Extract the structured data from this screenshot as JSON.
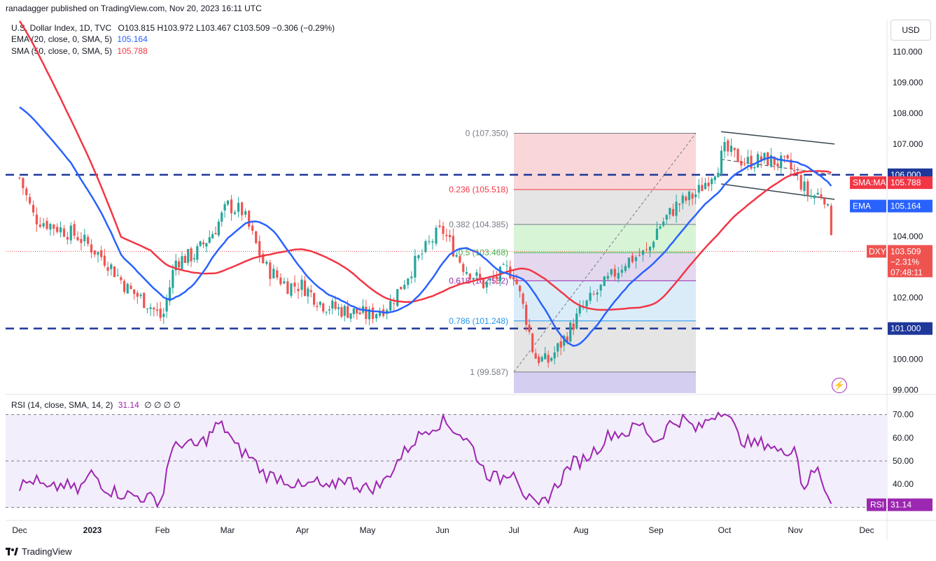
{
  "header": {
    "published": "ranadagger published on TradingView.com, Nov 20, 2023 16:11 UTC"
  },
  "legend": {
    "symbol": "U.S. Dollar Index, 1D, TVC",
    "ohlc": "O103.815 H103.972 L103.467 C103.509 −0.306 (−0.29%)",
    "ema_label": "EMA (20, close, 0, SMA, 5)",
    "ema_value": "105.164",
    "sma_label": "SMA (50, close, 0, SMA, 5)",
    "sma_value": "105.788",
    "rsi_label": "RSI (14, close, SMA, 14, 2)",
    "rsi_value": "31.14",
    "rsi_extra": "∅ ∅ ∅ ∅"
  },
  "currency_button": "USD",
  "branding": "TradingView",
  "colors": {
    "ema": "#2962ff",
    "sma": "#f23645",
    "up": "#26a69a",
    "down": "#ef5350",
    "level_line": "#1e3799",
    "rsi_line": "#9c27b0",
    "rsi_band": "#f3eefb",
    "fib_red": "#f7c9cc",
    "fib_gray": "#dcdcdc",
    "fib_green": "#c9f0c9",
    "fib_purple": "#d9cbe8",
    "fib_blue": "#cfe6f7",
    "fib_violet": "#c9c3ee"
  },
  "chart_data": [
    {
      "type": "candlestick",
      "title": "U.S. Dollar Index, 1D, TVC",
      "ylim": [
        98.9,
        111.0
      ],
      "y_ticks": [
        "110.000",
        "109.000",
        "108.000",
        "107.000",
        "106.000",
        "104.000",
        "102.000",
        "101.000",
        "100.000",
        "99.000"
      ],
      "y_tick_values": [
        110,
        109,
        108,
        107,
        106,
        104,
        102,
        101,
        100,
        99
      ],
      "x_ticks": [
        "Dec",
        "2023",
        "Feb",
        "Mar",
        "Apr",
        "May",
        "Jun",
        "Jul",
        "Aug",
        "Sep",
        "Oct",
        "Nov",
        "Dec"
      ],
      "x_tick_positions": [
        0,
        1,
        2,
        3,
        4,
        5,
        6,
        7,
        8,
        9,
        10,
        11,
        12
      ],
      "close_series_anchor": [
        [
          0,
          105.9
        ],
        [
          0.2,
          104.6
        ],
        [
          0.5,
          104.3
        ],
        [
          0.8,
          104.0
        ],
        [
          1.0,
          103.6
        ],
        [
          1.2,
          103.2
        ],
        [
          1.5,
          102.3
        ],
        [
          1.8,
          101.8
        ],
        [
          2.0,
          101.3
        ],
        [
          2.2,
          103.2
        ],
        [
          2.5,
          103.4
        ],
        [
          2.8,
          104.2
        ],
        [
          3.0,
          105.0
        ],
        [
          3.2,
          104.8
        ],
        [
          3.5,
          103.0
        ],
        [
          3.8,
          102.4
        ],
        [
          4.0,
          102.4
        ],
        [
          4.3,
          101.8
        ],
        [
          4.6,
          101.6
        ],
        [
          4.9,
          101.5
        ],
        [
          5.0,
          101.4
        ],
        [
          5.3,
          101.8
        ],
        [
          5.6,
          103.0
        ],
        [
          5.9,
          104.0
        ],
        [
          6.0,
          104.2
        ],
        [
          6.3,
          103.0
        ],
        [
          6.6,
          102.4
        ],
        [
          6.9,
          102.9
        ],
        [
          7.0,
          102.8
        ],
        [
          7.2,
          101.2
        ],
        [
          7.3,
          100.1
        ],
        [
          7.5,
          99.9
        ],
        [
          7.7,
          100.5
        ],
        [
          7.9,
          101.2
        ],
        [
          8.0,
          101.6
        ],
        [
          8.3,
          102.4
        ],
        [
          8.6,
          103.2
        ],
        [
          8.9,
          103.5
        ],
        [
          9.0,
          104.2
        ],
        [
          9.3,
          105.0
        ],
        [
          9.6,
          105.4
        ],
        [
          9.9,
          106.3
        ],
        [
          10.0,
          106.8
        ],
        [
          10.3,
          106.4
        ],
        [
          10.6,
          106.5
        ],
        [
          10.9,
          106.3
        ],
        [
          11.0,
          106.0
        ],
        [
          11.2,
          105.3
        ],
        [
          11.4,
          105.4
        ],
        [
          11.5,
          104.3
        ],
        [
          11.55,
          103.5
        ]
      ],
      "ema": {
        "name": "EMA",
        "value": "105.164"
      },
      "sma": {
        "name": "SMA:MA",
        "value": "105.788"
      },
      "last_price": {
        "label": "DXY",
        "value": "103.509",
        "change": "−2.31%",
        "countdown": "07:48:11"
      },
      "horizontal_levels": [
        {
          "label": "106.000",
          "value": 106.0
        },
        {
          "label": "101.000",
          "value": 101.0
        }
      ],
      "fibonacci": [
        {
          "label": "0 (107.350)",
          "value": 107.35
        },
        {
          "label": "0.236 (105.518)",
          "value": 105.518
        },
        {
          "label": "0.382 (104.385)",
          "value": 104.385
        },
        {
          "label": "0.5 (103.468)",
          "value": 103.468
        },
        {
          "label": "0.618 (102.552)",
          "value": 102.552
        },
        {
          "label": "0.786 (101.248)",
          "value": 101.248
        },
        {
          "label": "1 (99.587)",
          "value": 99.587
        }
      ],
      "channel": {
        "upper": [
          [
            9.95,
            107.4
          ],
          [
            11.55,
            107.0
          ]
        ],
        "lower": [
          [
            9.95,
            105.7
          ],
          [
            11.55,
            105.2
          ]
        ],
        "mid": [
          [
            9.95,
            106.5
          ],
          [
            11.55,
            106.0
          ]
        ]
      }
    },
    {
      "type": "line",
      "title": "RSI (14, close, SMA, 14, 2)",
      "ylim": [
        25,
        78
      ],
      "y_ticks": [
        "70.00",
        "60.00",
        "50.00",
        "40.00"
      ],
      "y_tick_values": [
        70,
        60,
        50,
        40
      ],
      "band": [
        30,
        70
      ],
      "values": [
        [
          0,
          39
        ],
        [
          0.2,
          42
        ],
        [
          0.4,
          37
        ],
        [
          0.6,
          40
        ],
        [
          0.8,
          37
        ],
        [
          1.0,
          45
        ],
        [
          1.2,
          38
        ],
        [
          1.4,
          36
        ],
        [
          1.6,
          35
        ],
        [
          1.8,
          34
        ],
        [
          2.0,
          33
        ],
        [
          2.1,
          53
        ],
        [
          2.3,
          58
        ],
        [
          2.5,
          56
        ],
        [
          2.7,
          60
        ],
        [
          2.85,
          66
        ],
        [
          3.0,
          63
        ],
        [
          3.1,
          56
        ],
        [
          3.3,
          52
        ],
        [
          3.5,
          44
        ],
        [
          3.7,
          43
        ],
        [
          3.9,
          40
        ],
        [
          4.0,
          38
        ],
        [
          4.2,
          41
        ],
        [
          4.4,
          37
        ],
        [
          4.6,
          43
        ],
        [
          4.8,
          40
        ],
        [
          5.0,
          38
        ],
        [
          5.2,
          40
        ],
        [
          5.4,
          50
        ],
        [
          5.6,
          58
        ],
        [
          5.8,
          64
        ],
        [
          6.0,
          67
        ],
        [
          6.2,
          63
        ],
        [
          6.4,
          57
        ],
        [
          6.6,
          45
        ],
        [
          6.8,
          42
        ],
        [
          7.0,
          47
        ],
        [
          7.15,
          36
        ],
        [
          7.35,
          29
        ],
        [
          7.6,
          38
        ],
        [
          7.85,
          49
        ],
        [
          8.0,
          50
        ],
        [
          8.2,
          55
        ],
        [
          8.4,
          62
        ],
        [
          8.6,
          62
        ],
        [
          8.8,
          66
        ],
        [
          9.0,
          58
        ],
        [
          9.2,
          66
        ],
        [
          9.4,
          68
        ],
        [
          9.6,
          63
        ],
        [
          9.8,
          69
        ],
        [
          10.0,
          73
        ],
        [
          10.2,
          60
        ],
        [
          10.4,
          57
        ],
        [
          10.6,
          58
        ],
        [
          10.8,
          53
        ],
        [
          11.0,
          57
        ],
        [
          11.1,
          38
        ],
        [
          11.3,
          47
        ],
        [
          11.45,
          36
        ],
        [
          11.55,
          31.14
        ]
      ],
      "last_label": "RSI",
      "last_value": "31.14"
    }
  ]
}
